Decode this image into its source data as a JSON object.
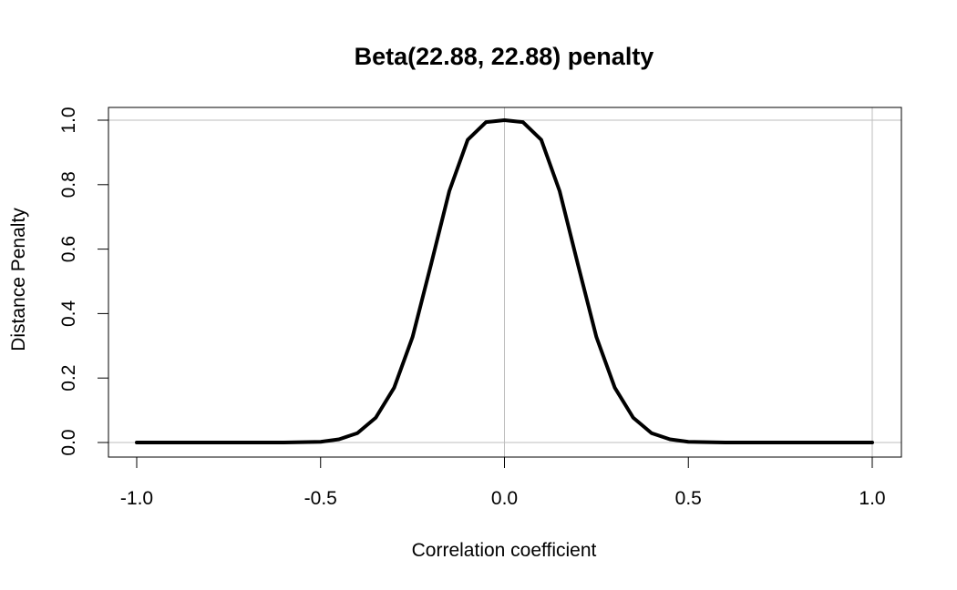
{
  "chart_data": {
    "type": "line",
    "title": "Beta(22.88, 22.88) penalty",
    "xlabel": "Correlation coefficient",
    "ylabel": "Distance Penalty",
    "xlim": [
      -1.0,
      1.0
    ],
    "ylim": [
      0.0,
      1.0
    ],
    "xticks": [
      -1.0,
      -0.5,
      0.0,
      0.5,
      1.0
    ],
    "xtick_labels": [
      "-1.0",
      "-0.5",
      "0.0",
      "0.5",
      "1.0"
    ],
    "yticks": [
      0.0,
      0.2,
      0.4,
      0.6,
      0.8,
      1.0
    ],
    "ytick_labels": [
      "0.0",
      "0.2",
      "0.4",
      "0.6",
      "0.8",
      "1.0"
    ],
    "reference_lines": {
      "h": [
        0.0,
        1.0
      ],
      "v": [
        0.0,
        1.0
      ]
    },
    "series": [
      {
        "name": "Beta(22.88, 22.88) penalty",
        "x": [
          -1.0,
          -0.9,
          -0.8,
          -0.7,
          -0.6,
          -0.5,
          -0.45,
          -0.4,
          -0.35,
          -0.3,
          -0.25,
          -0.2,
          -0.15,
          -0.1,
          -0.05,
          0.0,
          0.05,
          0.1,
          0.15,
          0.2,
          0.25,
          0.3,
          0.35,
          0.4,
          0.45,
          0.5,
          0.6,
          0.7,
          0.8,
          0.9,
          1.0
        ],
        "y": [
          0.0,
          0.0,
          0.0,
          0.0,
          0.0,
          0.002,
          0.01,
          0.029,
          0.077,
          0.17,
          0.327,
          0.551,
          0.78,
          0.939,
          0.994,
          1.0,
          0.994,
          0.939,
          0.78,
          0.551,
          0.327,
          0.17,
          0.077,
          0.029,
          0.01,
          0.002,
          0.0,
          0.0,
          0.0,
          0.0,
          0.0
        ]
      }
    ],
    "colors": {
      "line": "#000000",
      "grid": "#bebebe",
      "frame": "#000000"
    },
    "grid": false
  }
}
